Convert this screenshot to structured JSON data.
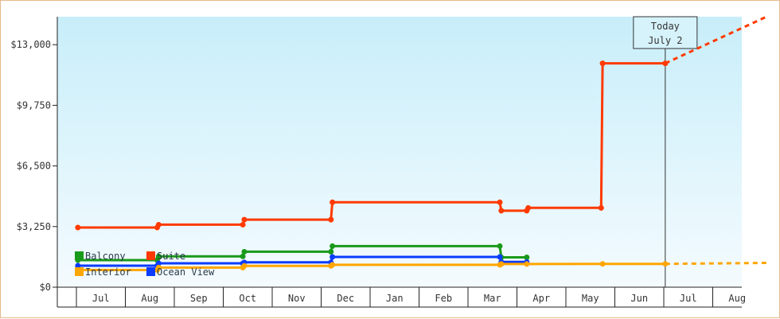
{
  "chart_data": {
    "type": "line",
    "title": "",
    "xlabel": "",
    "ylabel": "",
    "ylim": [
      0,
      14500
    ],
    "yticks": [
      {
        "value": 0,
        "label": "$0"
      },
      {
        "value": 3250,
        "label": "$3,250"
      },
      {
        "value": 6500,
        "label": "$6,500"
      },
      {
        "value": 9750,
        "label": "$9,750"
      },
      {
        "value": 13000,
        "label": "$13,000"
      }
    ],
    "months": [
      "Jul",
      "Aug",
      "Sep",
      "Oct",
      "Nov",
      "Dec",
      "Jan",
      "Feb",
      "Mar",
      "Apr",
      "May",
      "Jun",
      "Jul",
      "Aug"
    ],
    "today": {
      "line1": "Today",
      "line2": "July 2",
      "x": 12.03
    },
    "legend": {
      "placement": "bottom-left",
      "items": [
        {
          "name": "Balcony",
          "color": "#1a9a1a"
        },
        {
          "name": "Suite",
          "color": "#ff3a00"
        },
        {
          "name": "Interior",
          "color": "#ffa600"
        },
        {
          "name": "Ocean View",
          "color": "#0a3cff"
        }
      ]
    },
    "series": [
      {
        "name": "Suite",
        "color": "#ff3a00",
        "points": [
          [
            0.03,
            3200
          ],
          [
            1.65,
            3200
          ],
          [
            1.68,
            3350
          ],
          [
            3.4,
            3350
          ],
          [
            3.43,
            3620
          ],
          [
            5.2,
            3620
          ],
          [
            5.23,
            4550
          ],
          [
            8.65,
            4550
          ],
          [
            8.68,
            4100
          ],
          [
            9.2,
            4100
          ],
          [
            9.23,
            4250
          ],
          [
            10.72,
            4250
          ],
          [
            10.75,
            12000
          ],
          [
            12.03,
            12000
          ]
        ],
        "projection": [
          [
            12.03,
            12000
          ],
          [
            14.1,
            14500
          ]
        ]
      },
      {
        "name": "Balcony",
        "color": "#1a9a1a",
        "points": [
          [
            0.03,
            1450
          ],
          [
            1.65,
            1450
          ],
          [
            1.68,
            1650
          ],
          [
            3.4,
            1650
          ],
          [
            3.43,
            1900
          ],
          [
            5.2,
            1900
          ],
          [
            5.23,
            2200
          ],
          [
            8.65,
            2200
          ],
          [
            8.68,
            1600
          ],
          [
            9.2,
            1600
          ]
        ]
      },
      {
        "name": "Ocean View",
        "color": "#0a3cff",
        "points": [
          [
            0.03,
            1150
          ],
          [
            1.65,
            1150
          ],
          [
            1.68,
            1280
          ],
          [
            3.4,
            1280
          ],
          [
            3.43,
            1330
          ],
          [
            5.2,
            1330
          ],
          [
            5.23,
            1620
          ],
          [
            8.65,
            1620
          ],
          [
            8.68,
            1350
          ],
          [
            9.2,
            1350
          ]
        ]
      },
      {
        "name": "Interior",
        "color": "#ffa600",
        "points": [
          [
            0.03,
            920
          ],
          [
            1.65,
            920
          ],
          [
            1.68,
            1050
          ],
          [
            3.4,
            1050
          ],
          [
            3.43,
            1140
          ],
          [
            5.2,
            1140
          ],
          [
            5.23,
            1200
          ],
          [
            8.65,
            1200
          ],
          [
            8.68,
            1240
          ],
          [
            9.2,
            1240
          ],
          [
            10.75,
            1250
          ],
          [
            12.03,
            1250
          ]
        ],
        "projection": [
          [
            12.03,
            1250
          ],
          [
            14.1,
            1300
          ]
        ]
      }
    ]
  }
}
